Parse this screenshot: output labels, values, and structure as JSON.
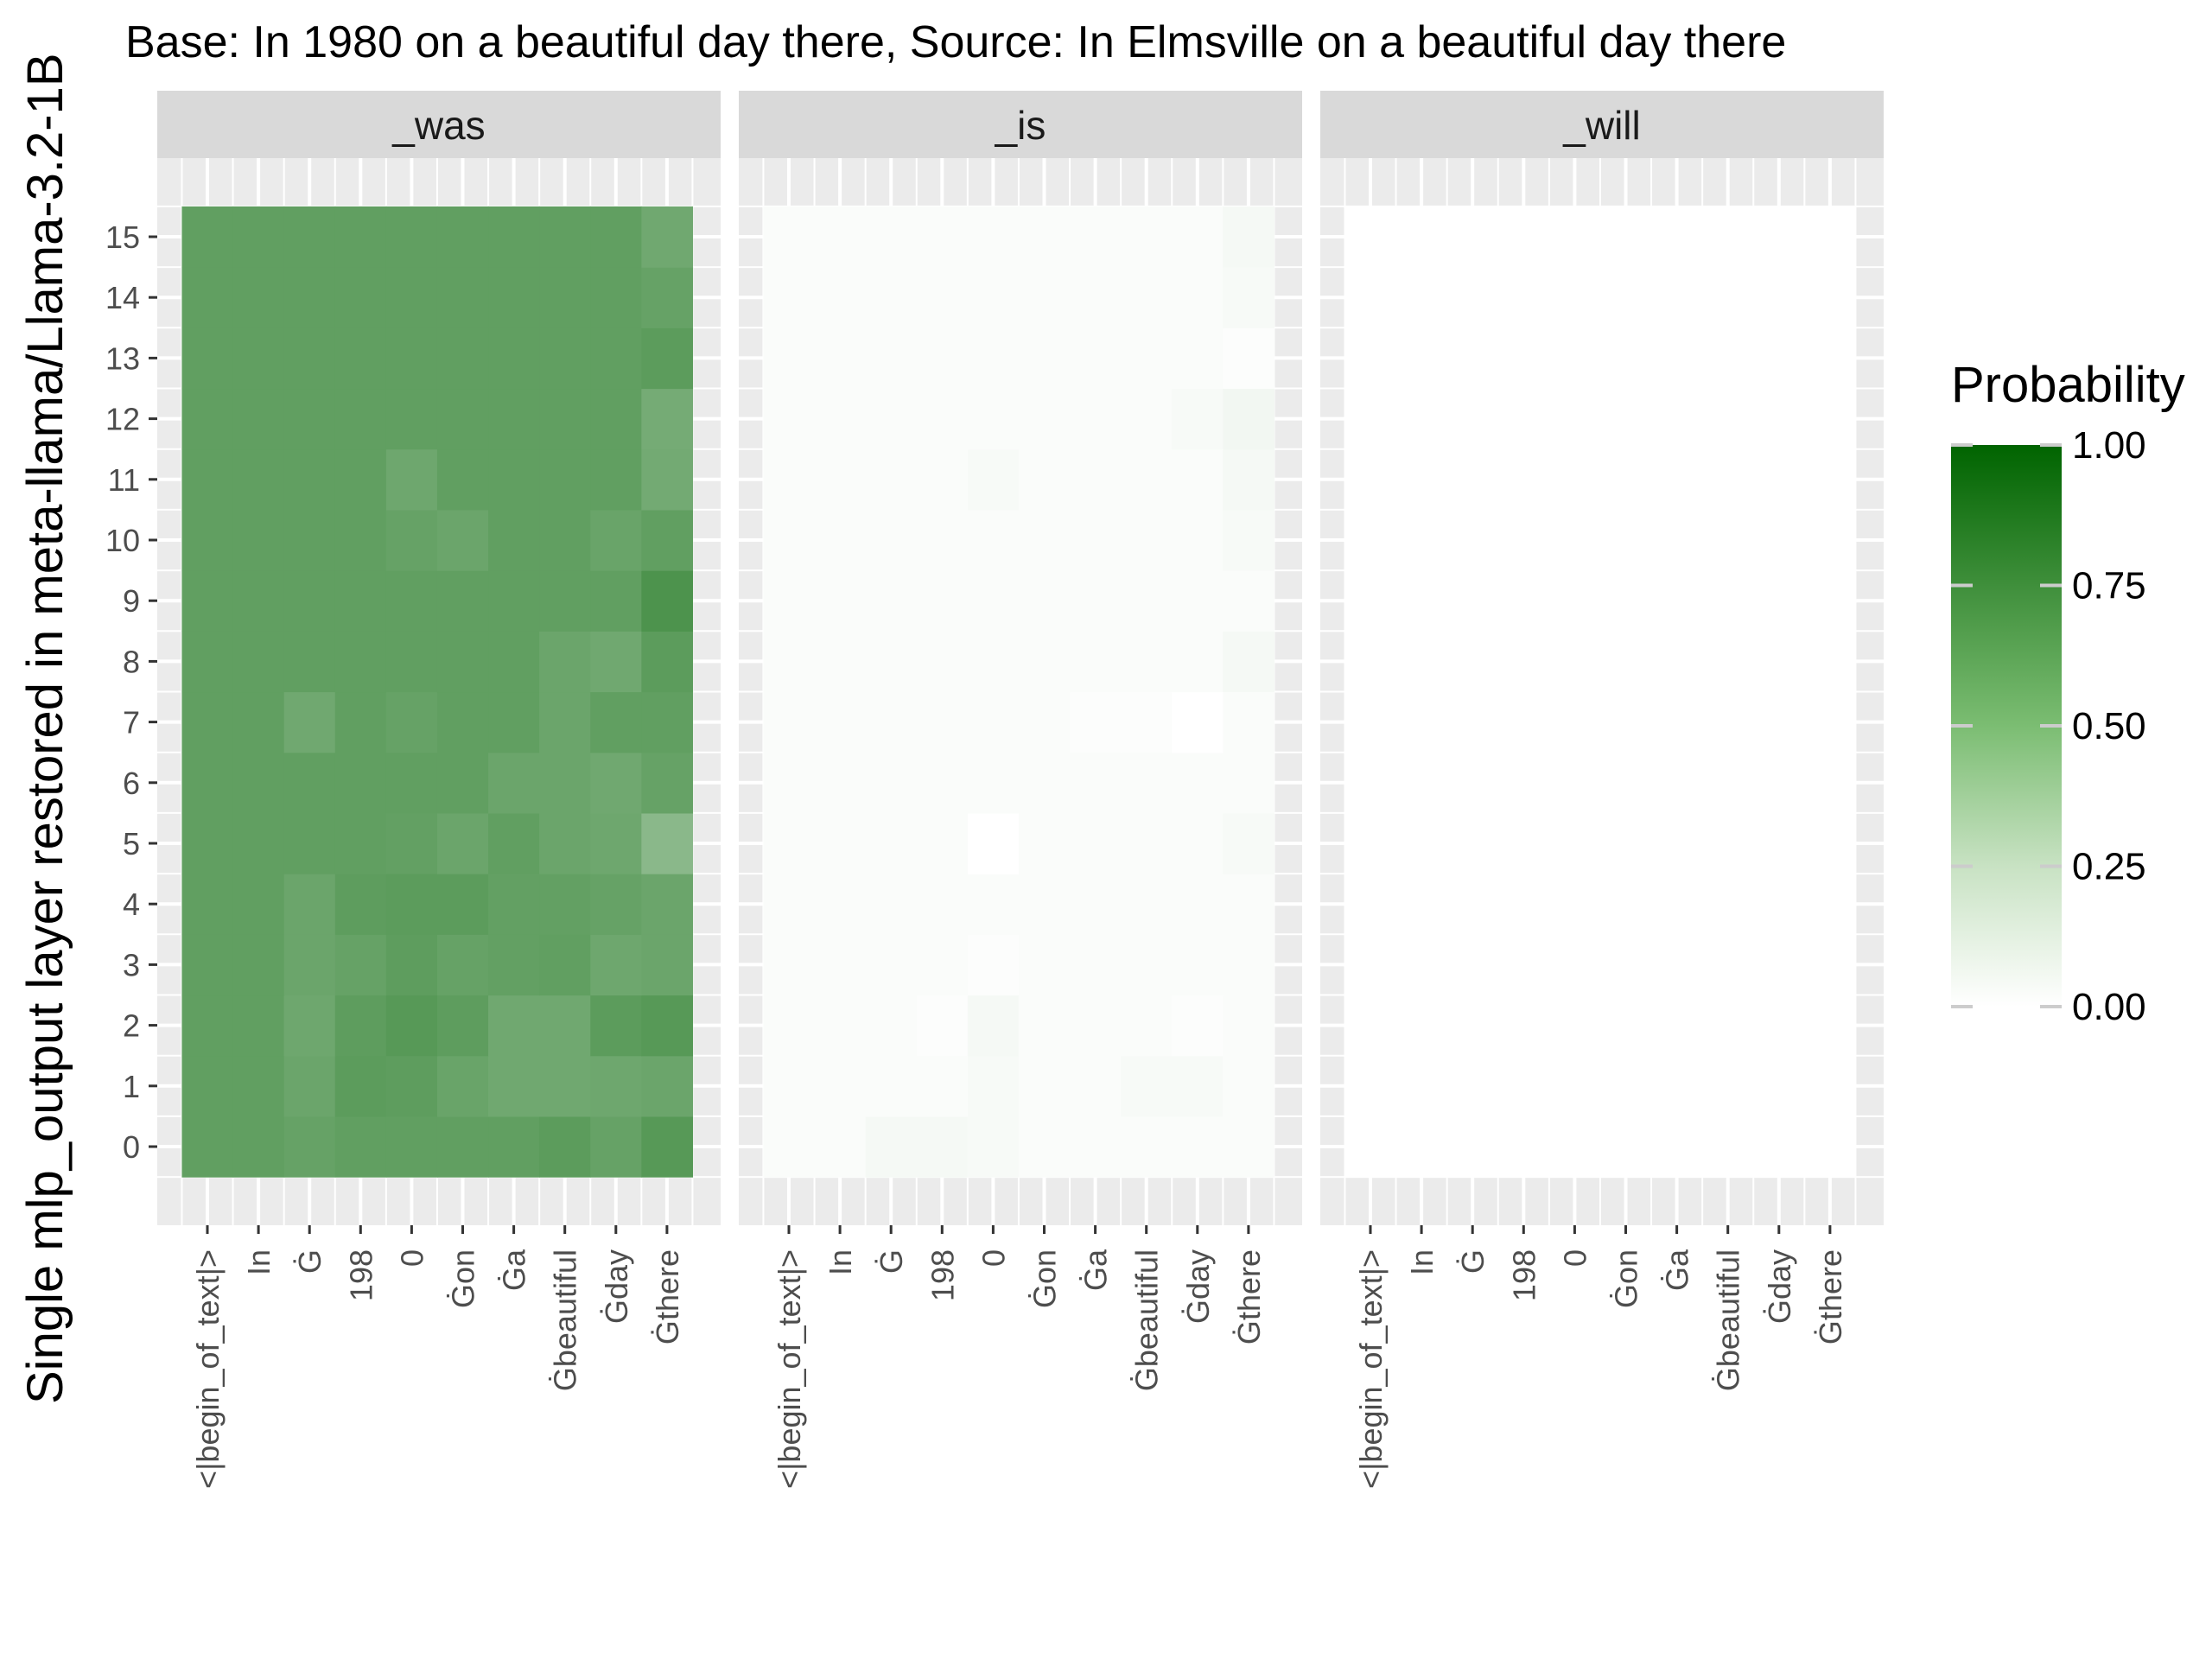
{
  "chart_data": {
    "type": "heatmap",
    "title": "Base: In 1980 on a beautiful day there, Source: In Elmsville on a beautiful day there",
    "ylabel": "Single mlp_output layer restored in meta-llama/Llama-3.2-1B",
    "xlabel": "",
    "facets": [
      "_was",
      "_is",
      "_will"
    ],
    "x": [
      "<|begin_of_text|>",
      "In",
      "Ġ",
      "198",
      "0",
      "Ġon",
      "Ġa",
      "Ġbeautiful",
      "Ġday",
      "Ġthere"
    ],
    "y": [
      0,
      1,
      2,
      3,
      4,
      5,
      6,
      7,
      8,
      9,
      10,
      11,
      12,
      13,
      14,
      15
    ],
    "legend": {
      "title": "Probability",
      "ticks": [
        "1.00",
        "0.75",
        "0.50",
        "0.25",
        "0.00"
      ],
      "tick_values": [
        1.0,
        0.75,
        0.5,
        0.25,
        0.0
      ],
      "low_color": "#ffffff",
      "high_color": "#006400",
      "placement": "right"
    },
    "colors": {
      "panel_bg": "#ebebeb",
      "strip_bg": "#d9d9d9",
      "grid": "#ffffff"
    },
    "values": {
      "_was": [
        [
          0.62,
          0.62,
          0.6,
          0.62,
          0.62,
          0.62,
          0.62,
          0.64,
          0.6,
          0.66
        ],
        [
          0.62,
          0.62,
          0.58,
          0.64,
          0.63,
          0.59,
          0.56,
          0.56,
          0.57,
          0.58
        ],
        [
          0.62,
          0.62,
          0.57,
          0.63,
          0.66,
          0.63,
          0.56,
          0.56,
          0.64,
          0.66
        ],
        [
          0.62,
          0.62,
          0.58,
          0.6,
          0.63,
          0.6,
          0.61,
          0.62,
          0.57,
          0.58
        ],
        [
          0.62,
          0.62,
          0.58,
          0.63,
          0.64,
          0.64,
          0.61,
          0.61,
          0.6,
          0.58
        ],
        [
          0.62,
          0.62,
          0.62,
          0.62,
          0.61,
          0.58,
          0.62,
          0.58,
          0.57,
          0.46
        ],
        [
          0.62,
          0.62,
          0.62,
          0.62,
          0.62,
          0.62,
          0.58,
          0.58,
          0.56,
          0.6
        ],
        [
          0.62,
          0.62,
          0.56,
          0.62,
          0.6,
          0.62,
          0.62,
          0.58,
          0.62,
          0.62
        ],
        [
          0.62,
          0.62,
          0.62,
          0.62,
          0.62,
          0.62,
          0.62,
          0.58,
          0.56,
          0.64
        ],
        [
          0.62,
          0.62,
          0.62,
          0.62,
          0.62,
          0.62,
          0.62,
          0.62,
          0.62,
          0.7
        ],
        [
          0.62,
          0.62,
          0.62,
          0.62,
          0.6,
          0.58,
          0.62,
          0.62,
          0.59,
          0.62
        ],
        [
          0.62,
          0.62,
          0.62,
          0.62,
          0.57,
          0.62,
          0.62,
          0.62,
          0.62,
          0.55
        ],
        [
          0.62,
          0.62,
          0.62,
          0.62,
          0.62,
          0.62,
          0.62,
          0.62,
          0.62,
          0.54
        ],
        [
          0.62,
          0.62,
          0.62,
          0.62,
          0.62,
          0.62,
          0.62,
          0.62,
          0.62,
          0.64
        ],
        [
          0.62,
          0.62,
          0.62,
          0.62,
          0.62,
          0.62,
          0.62,
          0.62,
          0.62,
          0.6
        ],
        [
          0.62,
          0.62,
          0.62,
          0.62,
          0.62,
          0.62,
          0.62,
          0.62,
          0.62,
          0.56
        ]
      ],
      "_is": [
        [
          0.02,
          0.02,
          0.04,
          0.04,
          0.03,
          0.02,
          0.02,
          0.02,
          0.02,
          0.02
        ],
        [
          0.02,
          0.02,
          0.02,
          0.02,
          0.03,
          0.02,
          0.02,
          0.03,
          0.03,
          0.02
        ],
        [
          0.02,
          0.02,
          0.02,
          0.01,
          0.04,
          0.02,
          0.02,
          0.02,
          0.01,
          0.02
        ],
        [
          0.02,
          0.02,
          0.02,
          0.02,
          0.01,
          0.02,
          0.02,
          0.02,
          0.02,
          0.02
        ],
        [
          0.02,
          0.02,
          0.02,
          0.02,
          0.02,
          0.02,
          0.02,
          0.02,
          0.02,
          0.02
        ],
        [
          0.02,
          0.02,
          0.02,
          0.02,
          0.0,
          0.02,
          0.02,
          0.02,
          0.02,
          0.03
        ],
        [
          0.02,
          0.02,
          0.02,
          0.02,
          0.02,
          0.02,
          0.02,
          0.02,
          0.02,
          0.02
        ],
        [
          0.02,
          0.02,
          0.02,
          0.02,
          0.02,
          0.02,
          0.01,
          0.01,
          0.0,
          0.02
        ],
        [
          0.02,
          0.02,
          0.02,
          0.02,
          0.02,
          0.02,
          0.02,
          0.02,
          0.02,
          0.04
        ],
        [
          0.02,
          0.02,
          0.02,
          0.02,
          0.02,
          0.02,
          0.02,
          0.02,
          0.02,
          0.02
        ],
        [
          0.02,
          0.02,
          0.02,
          0.02,
          0.02,
          0.02,
          0.02,
          0.02,
          0.02,
          0.03
        ],
        [
          0.02,
          0.02,
          0.02,
          0.02,
          0.03,
          0.02,
          0.02,
          0.02,
          0.02,
          0.04
        ],
        [
          0.02,
          0.02,
          0.02,
          0.02,
          0.02,
          0.02,
          0.02,
          0.02,
          0.03,
          0.05
        ],
        [
          0.02,
          0.02,
          0.02,
          0.02,
          0.02,
          0.02,
          0.02,
          0.02,
          0.02,
          0.01
        ],
        [
          0.02,
          0.02,
          0.02,
          0.02,
          0.02,
          0.02,
          0.02,
          0.02,
          0.02,
          0.03
        ],
        [
          0.02,
          0.02,
          0.02,
          0.02,
          0.02,
          0.02,
          0.02,
          0.02,
          0.02,
          0.04
        ]
      ],
      "_will": [
        [
          0.0,
          0.0,
          0.0,
          0.0,
          0.0,
          0.0,
          0.0,
          0.0,
          0.0,
          0.0
        ],
        [
          0.0,
          0.0,
          0.0,
          0.0,
          0.0,
          0.0,
          0.0,
          0.0,
          0.0,
          0.0
        ],
        [
          0.0,
          0.0,
          0.0,
          0.0,
          0.0,
          0.0,
          0.0,
          0.0,
          0.0,
          0.0
        ],
        [
          0.0,
          0.0,
          0.0,
          0.0,
          0.0,
          0.0,
          0.0,
          0.0,
          0.0,
          0.0
        ],
        [
          0.0,
          0.0,
          0.0,
          0.0,
          0.0,
          0.0,
          0.0,
          0.0,
          0.0,
          0.0
        ],
        [
          0.0,
          0.0,
          0.0,
          0.0,
          0.0,
          0.0,
          0.0,
          0.0,
          0.0,
          0.0
        ],
        [
          0.0,
          0.0,
          0.0,
          0.0,
          0.0,
          0.0,
          0.0,
          0.0,
          0.0,
          0.0
        ],
        [
          0.0,
          0.0,
          0.0,
          0.0,
          0.0,
          0.0,
          0.0,
          0.0,
          0.0,
          0.0
        ],
        [
          0.0,
          0.0,
          0.0,
          0.0,
          0.0,
          0.0,
          0.0,
          0.0,
          0.0,
          0.0
        ],
        [
          0.0,
          0.0,
          0.0,
          0.0,
          0.0,
          0.0,
          0.0,
          0.0,
          0.0,
          0.0
        ],
        [
          0.0,
          0.0,
          0.0,
          0.0,
          0.0,
          0.0,
          0.0,
          0.0,
          0.0,
          0.0
        ],
        [
          0.0,
          0.0,
          0.0,
          0.0,
          0.0,
          0.0,
          0.0,
          0.0,
          0.0,
          0.0
        ],
        [
          0.0,
          0.0,
          0.0,
          0.0,
          0.0,
          0.0,
          0.0,
          0.0,
          0.0,
          0.0
        ],
        [
          0.0,
          0.0,
          0.0,
          0.0,
          0.0,
          0.0,
          0.0,
          0.0,
          0.0,
          0.0
        ],
        [
          0.0,
          0.0,
          0.0,
          0.0,
          0.0,
          0.0,
          0.0,
          0.0,
          0.0,
          0.0
        ],
        [
          0.0,
          0.0,
          0.0,
          0.0,
          0.0,
          0.0,
          0.0,
          0.0,
          0.0,
          0.0
        ]
      ]
    }
  }
}
